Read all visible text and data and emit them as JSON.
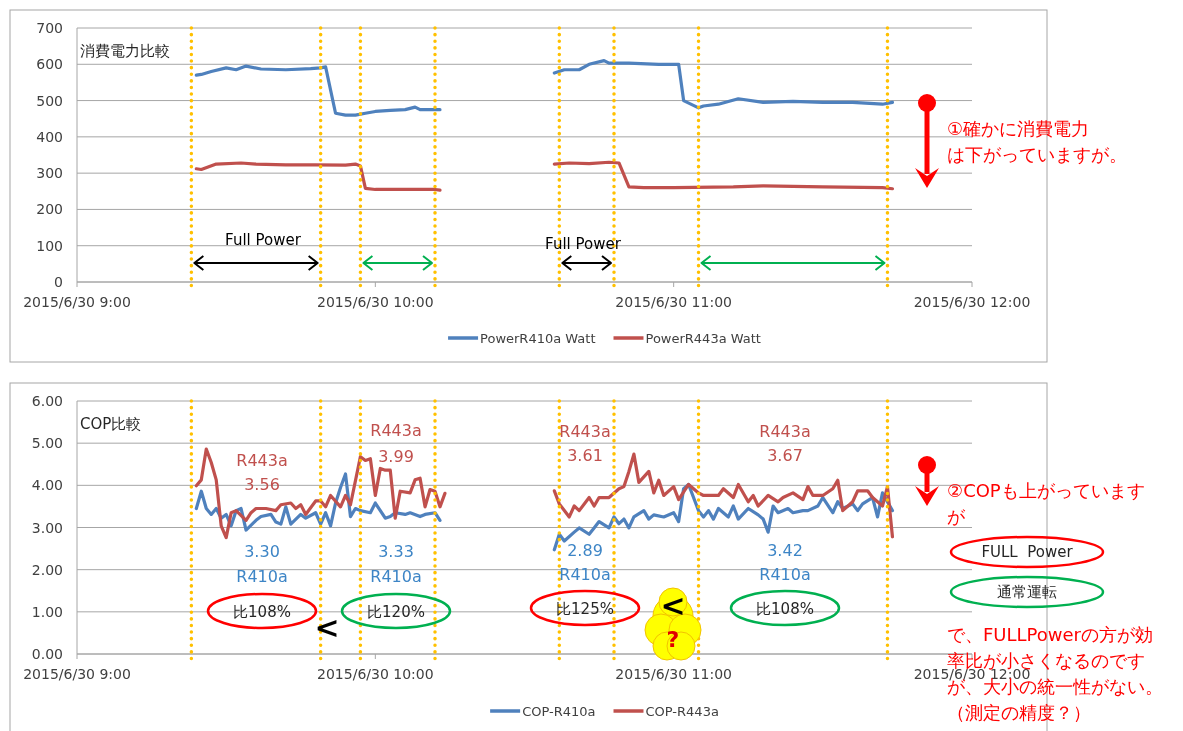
{
  "chart_data": [
    {
      "type": "line",
      "title": "消費電力比較",
      "xlim": [
        "2015-06-30T09:00",
        "2015-06-30T12:00"
      ],
      "xticks": [
        {
          "value": "2015-06-30T09:00",
          "label": "2015/6/30 9:00"
        },
        {
          "value": "2015-06-30T10:00",
          "label": "2015/6/30 10:00"
        },
        {
          "value": "2015-06-30T11:00",
          "label": "2015/6/30 11:00"
        },
        {
          "value": "2015-06-30T12:00",
          "label": "2015/6/30 12:00"
        }
      ],
      "ylim": [
        0,
        700
      ],
      "yticks": [
        0,
        100,
        200,
        300,
        400,
        500,
        600,
        700
      ],
      "grid": "y",
      "legend": "bottom",
      "series": [
        {
          "name": "PowerR410a Watt",
          "color": "#4f81bd",
          "x": [
            "2015-06-30T09:24",
            "2015-06-30T09:25",
            "2015-06-30T09:27",
            "2015-06-30T09:30",
            "2015-06-30T09:32",
            "2015-06-30T09:34",
            "2015-06-30T09:37",
            "2015-06-30T09:42",
            "2015-06-30T09:47",
            "2015-06-30T09:49",
            "2015-06-30T09:50",
            "2015-06-30T09:52",
            "2015-06-30T09:54",
            "2015-06-30T09:56",
            "2015-06-30T09:58",
            "2015-06-30T10:00",
            "2015-06-30T10:03",
            "2015-06-30T10:06",
            "2015-06-30T10:08",
            "2015-06-30T10:09",
            "2015-06-30T10:13",
            "2015-06-30T10:36",
            "2015-06-30T10:38",
            "2015-06-30T10:41",
            "2015-06-30T10:43",
            "2015-06-30T10:46",
            "2015-06-30T10:47",
            "2015-06-30T10:51",
            "2015-06-30T10:57",
            "2015-06-30T11:01",
            "2015-06-30T11:02",
            "2015-06-30T11:05",
            "2015-06-30T11:06",
            "2015-06-30T11:09",
            "2015-06-30T11:13",
            "2015-06-30T11:18",
            "2015-06-30T11:24",
            "2015-06-30T11:30",
            "2015-06-30T11:36",
            "2015-06-30T11:42",
            "2015-06-30T11:44"
          ],
          "values": [
            570,
            572,
            580,
            590,
            585,
            595,
            587,
            585,
            588,
            590,
            593,
            465,
            460,
            460,
            465,
            470,
            473,
            475,
            482,
            475,
            475,
            576,
            585,
            585,
            600,
            610,
            603,
            603,
            600,
            600,
            500,
            480,
            485,
            490,
            505,
            495,
            498,
            495,
            495,
            490,
            495
          ]
        },
        {
          "name": "PowerR443a Watt",
          "color": "#c0504d",
          "x": [
            "2015-06-30T09:24",
            "2015-06-30T09:25",
            "2015-06-30T09:28",
            "2015-06-30T09:33",
            "2015-06-30T09:36",
            "2015-06-30T09:42",
            "2015-06-30T09:48",
            "2015-06-30T09:54",
            "2015-06-30T09:56",
            "2015-06-30T09:57",
            "2015-06-30T09:58",
            "2015-06-30T10:00",
            "2015-06-30T10:06",
            "2015-06-30T10:12",
            "2015-06-30T10:13",
            "2015-06-30T10:36",
            "2015-06-30T10:39",
            "2015-06-30T10:43",
            "2015-06-30T10:47",
            "2015-06-30T10:49",
            "2015-06-30T10:50",
            "2015-06-30T10:51",
            "2015-06-30T10:54",
            "2015-06-30T11:00",
            "2015-06-30T11:12",
            "2015-06-30T11:18",
            "2015-06-30T11:30",
            "2015-06-30T11:42",
            "2015-06-30T11:44"
          ],
          "values": [
            312,
            310,
            325,
            328,
            325,
            323,
            323,
            322,
            325,
            320,
            258,
            255,
            255,
            255,
            253,
            325,
            328,
            326,
            330,
            328,
            295,
            262,
            260,
            260,
            262,
            265,
            262,
            260,
            257
          ]
        }
      ],
      "ref_lines": [
        {
          "axis": "x",
          "value": "2015-06-30T09:23",
          "color": "#ffc000",
          "line_style": "dotted"
        },
        {
          "axis": "x",
          "value": "2015-06-30T09:49",
          "color": "#ffc000",
          "line_style": "dotted"
        },
        {
          "axis": "x",
          "value": "2015-06-30T09:57",
          "color": "#ffc000",
          "line_style": "dotted"
        },
        {
          "axis": "x",
          "value": "2015-06-30T10:12",
          "color": "#ffc000",
          "line_style": "dotted"
        },
        {
          "axis": "x",
          "value": "2015-06-30T10:37",
          "color": "#ffc000",
          "line_style": "dotted"
        },
        {
          "axis": "x",
          "value": "2015-06-30T10:48",
          "color": "#ffc000",
          "line_style": "dotted"
        },
        {
          "axis": "x",
          "value": "2015-06-30T11:05",
          "color": "#ffc000",
          "line_style": "dotted"
        },
        {
          "axis": "x",
          "value": "2015-06-30T11:43",
          "color": "#ffc000",
          "line_style": "dotted"
        }
      ],
      "annotations": [
        "Full Power",
        "Full Power",
        "①確かに消費電力は下がっていますが。"
      ]
    },
    {
      "type": "line",
      "title": "COP比較",
      "xlim": [
        "2015-06-30T09:00",
        "2015-06-30T12:00"
      ],
      "xticks": [
        {
          "value": "2015-06-30T09:00",
          "label": "2015/6/30 9:00"
        },
        {
          "value": "2015-06-30T10:00",
          "label": "2015/6/30 10:00"
        },
        {
          "value": "2015-06-30T11:00",
          "label": "2015/6/30 11:00"
        },
        {
          "value": "2015-06-30T12:00",
          "label": "2015/6/30 12:00"
        }
      ],
      "ylim": [
        0,
        6
      ],
      "yticks": [
        {
          "value": 0,
          "label": "0.00"
        },
        {
          "value": 1,
          "label": "1.00"
        },
        {
          "value": 2,
          "label": "2.00"
        },
        {
          "value": 3,
          "label": "3.00"
        },
        {
          "value": 4,
          "label": "4.00"
        },
        {
          "value": 5,
          "label": "5.00"
        },
        {
          "value": 6,
          "label": "6.00"
        }
      ],
      "grid": "y",
      "legend": "bottom",
      "series": [
        {
          "name": "COP-R410a",
          "color": "#4f81bd",
          "x": [
            "2015-06-30T09:24",
            "2015-06-30T09:25",
            "2015-06-30T09:26",
            "2015-06-30T09:27",
            "2015-06-30T09:28",
            "2015-06-30T09:29",
            "2015-06-30T09:30",
            "2015-06-30T09:31",
            "2015-06-30T09:32",
            "2015-06-30T09:33",
            "2015-06-30T09:34",
            "2015-06-30T09:36",
            "2015-06-30T09:37",
            "2015-06-30T09:39",
            "2015-06-30T09:40",
            "2015-06-30T09:41",
            "2015-06-30T09:42",
            "2015-06-30T09:43",
            "2015-06-30T09:45",
            "2015-06-30T09:46",
            "2015-06-30T09:48",
            "2015-06-30T09:49",
            "2015-06-30T09:50",
            "2015-06-30T09:51",
            "2015-06-30T09:52",
            "2015-06-30T09:53",
            "2015-06-30T09:54",
            "2015-06-30T09:55",
            "2015-06-30T09:56",
            "2015-06-30T09:57",
            "2015-06-30T09:59",
            "2015-06-30T10:00",
            "2015-06-30T10:02",
            "2015-06-30T10:03",
            "2015-06-30T10:04",
            "2015-06-30T10:06",
            "2015-06-30T10:07",
            "2015-06-30T10:09",
            "2015-06-30T10:10",
            "2015-06-30T10:12",
            "2015-06-30T10:13",
            "2015-06-30T10:36",
            "2015-06-30T10:37",
            "2015-06-30T10:38",
            "2015-06-30T10:40",
            "2015-06-30T10:41",
            "2015-06-30T10:43",
            "2015-06-30T10:44",
            "2015-06-30T10:45",
            "2015-06-30T10:47",
            "2015-06-30T10:48",
            "2015-06-30T10:49",
            "2015-06-30T10:50",
            "2015-06-30T10:51",
            "2015-06-30T10:52",
            "2015-06-30T10:54",
            "2015-06-30T10:55",
            "2015-06-30T10:56",
            "2015-06-30T10:58",
            "2015-06-30T11:00",
            "2015-06-30T11:01",
            "2015-06-30T11:02",
            "2015-06-30T11:03",
            "2015-06-30T11:05",
            "2015-06-30T11:06",
            "2015-06-30T11:07",
            "2015-06-30T11:08",
            "2015-06-30T11:09",
            "2015-06-30T11:11",
            "2015-06-30T11:12",
            "2015-06-30T11:13",
            "2015-06-30T11:15",
            "2015-06-30T11:17",
            "2015-06-30T11:18",
            "2015-06-30T11:19",
            "2015-06-30T11:20",
            "2015-06-30T11:21",
            "2015-06-30T11:23",
            "2015-06-30T11:24",
            "2015-06-30T11:26",
            "2015-06-30T11:27",
            "2015-06-30T11:29",
            "2015-06-30T11:30",
            "2015-06-30T11:32",
            "2015-06-30T11:33",
            "2015-06-30T11:34",
            "2015-06-30T11:36",
            "2015-06-30T11:37",
            "2015-06-30T11:38",
            "2015-06-30T11:40",
            "2015-06-30T11:41",
            "2015-06-30T11:42",
            "2015-06-30T11:44"
          ],
          "values": [
            3.45,
            3.86,
            3.45,
            3.31,
            3.45,
            3.22,
            3.31,
            3.04,
            3.4,
            3.45,
            2.94,
            3.17,
            3.26,
            3.31,
            3.13,
            3.08,
            3.49,
            3.08,
            3.31,
            3.22,
            3.35,
            3.08,
            3.35,
            3.04,
            3.58,
            3.95,
            4.27,
            3.26,
            3.45,
            3.4,
            3.35,
            3.58,
            3.22,
            3.26,
            3.35,
            3.31,
            3.35,
            3.26,
            3.31,
            3.35,
            3.17,
            2.47,
            2.84,
            2.68,
            2.89,
            2.99,
            2.84,
            2.99,
            3.14,
            2.99,
            3.25,
            3.09,
            3.2,
            2.99,
            3.25,
            3.4,
            3.2,
            3.3,
            3.25,
            3.35,
            3.14,
            3.92,
            4.02,
            3.4,
            3.25,
            3.4,
            3.2,
            3.45,
            3.25,
            3.51,
            3.2,
            3.45,
            3.3,
            3.2,
            2.89,
            3.51,
            3.35,
            3.45,
            3.35,
            3.4,
            3.4,
            3.51,
            3.71,
            3.35,
            3.61,
            3.45,
            3.56,
            3.4,
            3.56,
            3.71,
            3.25,
            3.82,
            3.4
          ]
        },
        {
          "name": "COP-R443a",
          "color": "#c0504d",
          "x": [
            "2015-06-30T09:24",
            "2015-06-30T09:25",
            "2015-06-30T09:26",
            "2015-06-30T09:27",
            "2015-06-30T09:28",
            "2015-06-30T09:29",
            "2015-06-30T09:30",
            "2015-06-30T09:31",
            "2015-06-30T09:32",
            "2015-06-30T09:34",
            "2015-06-30T09:35",
            "2015-06-30T09:36",
            "2015-06-30T09:38",
            "2015-06-30T09:40",
            "2015-06-30T09:41",
            "2015-06-30T09:43",
            "2015-06-30T09:44",
            "2015-06-30T09:45",
            "2015-06-30T09:46",
            "2015-06-30T09:48",
            "2015-06-30T09:49",
            "2015-06-30T09:50",
            "2015-06-30T09:51",
            "2015-06-30T09:53",
            "2015-06-30T09:54",
            "2015-06-30T09:55",
            "2015-06-30T09:57",
            "2015-06-30T09:58",
            "2015-06-30T09:59",
            "2015-06-30T10:00",
            "2015-06-30T10:01",
            "2015-06-30T10:02",
            "2015-06-30T10:03",
            "2015-06-30T10:04",
            "2015-06-30T10:05",
            "2015-06-30T10:07",
            "2015-06-30T10:08",
            "2015-06-30T10:09",
            "2015-06-30T10:10",
            "2015-06-30T10:11",
            "2015-06-30T10:12",
            "2015-06-30T10:13",
            "2015-06-30T10:14",
            "2015-06-30T10:36",
            "2015-06-30T10:37",
            "2015-06-30T10:39",
            "2015-06-30T10:40",
            "2015-06-30T10:41",
            "2015-06-30T10:43",
            "2015-06-30T10:44",
            "2015-06-30T10:45",
            "2015-06-30T10:47",
            "2015-06-30T10:49",
            "2015-06-30T10:50",
            "2015-06-30T10:51",
            "2015-06-30T10:52",
            "2015-06-30T10:53",
            "2015-06-30T10:55",
            "2015-06-30T10:56",
            "2015-06-30T10:57",
            "2015-06-30T10:58",
            "2015-06-30T11:00",
            "2015-06-30T11:01",
            "2015-06-30T11:03",
            "2015-06-30T11:05",
            "2015-06-30T11:06",
            "2015-06-30T11:09",
            "2015-06-30T11:10",
            "2015-06-30T11:12",
            "2015-06-30T11:13",
            "2015-06-30T11:15",
            "2015-06-30T11:16",
            "2015-06-30T11:17",
            "2015-06-30T11:19",
            "2015-06-30T11:21",
            "2015-06-30T11:22",
            "2015-06-30T11:24",
            "2015-06-30T11:26",
            "2015-06-30T11:27",
            "2015-06-30T11:28",
            "2015-06-30T11:30",
            "2015-06-30T11:32",
            "2015-06-30T11:33",
            "2015-06-30T11:34",
            "2015-06-30T11:36",
            "2015-06-30T11:37",
            "2015-06-30T11:39",
            "2015-06-30T11:40",
            "2015-06-30T11:42",
            "2015-06-30T11:43",
            "2015-06-30T11:44"
          ],
          "values": [
            3.99,
            4.13,
            4.86,
            4.54,
            4.13,
            3.04,
            2.76,
            3.35,
            3.4,
            3.17,
            3.35,
            3.45,
            3.45,
            3.4,
            3.54,
            3.58,
            3.45,
            3.54,
            3.31,
            3.63,
            3.63,
            3.49,
            3.76,
            3.49,
            3.76,
            3.54,
            4.68,
            4.59,
            4.63,
            3.76,
            4.4,
            4.36,
            4.36,
            3.22,
            3.86,
            3.82,
            4.13,
            4.17,
            3.49,
            3.9,
            3.86,
            3.49,
            3.81,
            3.87,
            3.56,
            3.25,
            3.51,
            3.4,
            3.71,
            3.51,
            3.71,
            3.71,
            3.92,
            3.97,
            4.33,
            4.74,
            4.07,
            4.33,
            3.82,
            4.12,
            3.76,
            3.97,
            3.66,
            4.02,
            3.82,
            3.76,
            3.76,
            3.92,
            3.71,
            4.02,
            3.61,
            3.76,
            3.51,
            3.76,
            3.61,
            3.71,
            3.82,
            3.66,
            3.97,
            3.76,
            3.76,
            3.92,
            4.12,
            3.4,
            3.61,
            3.87,
            3.87,
            3.71,
            3.51,
            3.97,
            2.78
          ]
        }
      ],
      "ref_lines": [
        {
          "axis": "x",
          "value": "2015-06-30T09:23",
          "color": "#ffc000",
          "line_style": "dotted"
        },
        {
          "axis": "x",
          "value": "2015-06-30T09:49",
          "color": "#ffc000",
          "line_style": "dotted"
        },
        {
          "axis": "x",
          "value": "2015-06-30T09:57",
          "color": "#ffc000",
          "line_style": "dotted"
        },
        {
          "axis": "x",
          "value": "2015-06-30T10:12",
          "color": "#ffc000",
          "line_style": "dotted"
        },
        {
          "axis": "x",
          "value": "2015-06-30T10:37",
          "color": "#ffc000",
          "line_style": "dotted"
        },
        {
          "axis": "x",
          "value": "2015-06-30T10:48",
          "color": "#ffc000",
          "line_style": "dotted"
        },
        {
          "axis": "x",
          "value": "2015-06-30T11:05",
          "color": "#ffc000",
          "line_style": "dotted"
        },
        {
          "axis": "x",
          "value": "2015-06-30T11:43",
          "color": "#ffc000",
          "line_style": "dotted"
        }
      ],
      "annotations": [
        "R443a",
        "3.56",
        "3.30",
        "R410a",
        "比108%",
        "R443a",
        "3.99",
        "3.33",
        "R410a",
        "比120%",
        "R443a",
        "3.61",
        "2.89",
        "R410a",
        "比125%",
        "R443a",
        "3.67",
        "3.42",
        "R410a",
        "比108%",
        "<",
        "<",
        "?",
        "②COPも上がっていますが",
        "FULL  Power",
        "通常運転",
        "で、FULLPowerの方が効率比が小さくなるのですが、大小の統一性がない。（測定の精度？）"
      ]
    }
  ]
}
